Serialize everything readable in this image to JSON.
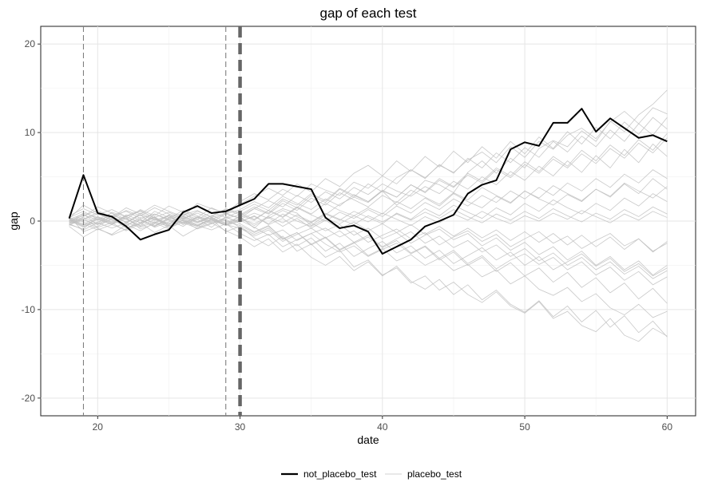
{
  "chart_data": {
    "type": "line",
    "title": "gap of each test",
    "xlabel": "date",
    "ylabel": "gap",
    "xlim": [
      16,
      62
    ],
    "ylim": [
      -22,
      22
    ],
    "x_ticks": [
      20,
      30,
      40,
      50,
      60
    ],
    "y_ticks": [
      -20,
      -10,
      0,
      10,
      20
    ],
    "grid": true,
    "legend_position": "bottom",
    "vlines": [
      {
        "x": 19,
        "style": "dashed-thin"
      },
      {
        "x": 29,
        "style": "dashed-thin"
      },
      {
        "x": 30,
        "style": "dashed-thick"
      }
    ],
    "colors": {
      "not_placebo_test": "#000000",
      "placebo_test": "#bebebe"
    },
    "legend": [
      {
        "key": "not_placebo_test",
        "label": "not_placebo_test"
      },
      {
        "key": "placebo_test",
        "label": "placebo_test"
      }
    ],
    "x": [
      18,
      19,
      20,
      21,
      22,
      23,
      24,
      25,
      26,
      27,
      28,
      29,
      30,
      31,
      32,
      33,
      34,
      35,
      36,
      37,
      38,
      39,
      40,
      41,
      42,
      43,
      44,
      45,
      46,
      47,
      48,
      49,
      50,
      51,
      52,
      53,
      54,
      55,
      56,
      57,
      58,
      59,
      60
    ],
    "series": [
      {
        "key": "not_placebo_test",
        "values": [
          0.3,
          5.2,
          0.9,
          0.5,
          -0.6,
          -2.1,
          -1.5,
          -1.0,
          1.0,
          1.7,
          0.9,
          1.1,
          1.8,
          2.5,
          4.2,
          4.2,
          3.9,
          3.6,
          0.4,
          -0.8,
          -0.5,
          -1.2,
          -3.7,
          -2.9,
          -2.1,
          -0.6,
          0.0,
          0.7,
          3.1,
          4.1,
          4.6,
          8.1,
          8.9,
          8.5,
          11.1,
          11.1,
          12.7,
          10.1,
          11.6,
          10.5,
          9.4,
          9.7,
          9.0
        ]
      },
      {
        "key": "placebo_test",
        "values": [
          0.2,
          0.8,
          -0.4,
          0.6,
          0.2,
          -0.5,
          0.8,
          0.1,
          -0.6,
          0.4,
          0.3,
          -0.2,
          0.5,
          -0.8,
          0.6,
          1.4,
          0.9,
          -0.5,
          0.7,
          1.9,
          2.7,
          2.1,
          3.4,
          1.8,
          3.0,
          4.6,
          4.1,
          3.2,
          5.5,
          6.8,
          5.4,
          7.1,
          6.0,
          8.2,
          9.1,
          8.4,
          10.2,
          9.0,
          11.3,
          10.1,
          12.0,
          13.2,
          14.8
        ]
      },
      {
        "key": "placebo_test",
        "values": [
          -0.4,
          -0.9,
          0.5,
          -0.2,
          -1.1,
          -0.3,
          0.4,
          -0.8,
          -0.1,
          -0.6,
          0.2,
          -1.2,
          -0.6,
          -1.9,
          -2.8,
          -1.7,
          -3.4,
          -2.6,
          -4.1,
          -3.3,
          -5.2,
          -4.4,
          -6.1,
          -5.3,
          -7.0,
          -6.2,
          -7.8,
          -6.9,
          -8.3,
          -9.2,
          -8.0,
          -9.6,
          -10.4,
          -9.1,
          -11.0,
          -10.2,
          -11.8,
          -12.5,
          -11.0,
          -12.9,
          -13.6,
          -12.1,
          -13.0
        ]
      },
      {
        "key": "placebo_test",
        "values": [
          0.1,
          0.6,
          1.2,
          0.4,
          1.5,
          0.8,
          1.8,
          1.1,
          0.5,
          2.0,
          1.4,
          0.9,
          2.2,
          3.1,
          2.4,
          3.6,
          2.8,
          4.2,
          3.5,
          2.9,
          4.4,
          3.7,
          5.1,
          4.2,
          5.8,
          4.9,
          6.3,
          5.5,
          6.9,
          7.8,
          6.6,
          8.4,
          7.2,
          9.0,
          8.1,
          9.7,
          10.5,
          9.3,
          11.2,
          12.4,
          11.0,
          12.8,
          12.1
        ]
      },
      {
        "key": "placebo_test",
        "values": [
          -0.2,
          0.3,
          -0.7,
          -0.2,
          0.4,
          -0.9,
          -0.3,
          0.6,
          -0.4,
          0.2,
          -0.7,
          0.5,
          -0.3,
          -1.2,
          -0.5,
          -2.0,
          -1.3,
          -2.6,
          -1.8,
          -3.2,
          -2.4,
          -3.9,
          -3.1,
          -4.5,
          -3.8,
          -5.0,
          -4.2,
          -5.6,
          -4.9,
          -6.3,
          -5.5,
          -7.1,
          -6.2,
          -7.7,
          -8.4,
          -7.5,
          -9.1,
          -8.2,
          -9.8,
          -10.6,
          -9.4,
          -10.9,
          -10.2
        ]
      },
      {
        "key": "placebo_test",
        "values": [
          0.4,
          1.1,
          0.2,
          0.9,
          -0.2,
          0.7,
          -0.5,
          0.3,
          1.2,
          0.6,
          -0.1,
          0.8,
          0.3,
          1.4,
          2.3,
          1.6,
          2.9,
          2.1,
          3.3,
          2.5,
          3.8,
          3.0,
          4.2,
          3.4,
          2.8,
          3.9,
          3.1,
          4.5,
          3.6,
          5.0,
          4.1,
          5.6,
          4.6,
          6.2,
          5.1,
          6.8,
          5.5,
          7.4,
          6.0,
          8.1,
          6.6,
          8.7,
          7.3
        ]
      },
      {
        "key": "placebo_test",
        "values": [
          -0.6,
          -1.8,
          -0.9,
          -1.5,
          -0.4,
          -1.1,
          -0.2,
          -0.9,
          0.2,
          -0.5,
          -1.0,
          -0.3,
          -1.4,
          -2.2,
          -1.5,
          -2.9,
          -2.1,
          -1.4,
          -2.6,
          -3.5,
          -2.8,
          -4.0,
          -3.2,
          -2.5,
          -3.7,
          -2.9,
          -4.4,
          -3.5,
          -5.0,
          -4.1,
          -5.7,
          -4.7,
          -6.2,
          -5.3,
          -6.9,
          -5.8,
          -7.5,
          -6.4,
          -8.1,
          -7.0,
          -8.8,
          -7.6,
          -9.3
        ]
      },
      {
        "key": "placebo_test",
        "values": [
          0.0,
          0.4,
          -0.3,
          1.0,
          0.5,
          -0.2,
          1.1,
          0.4,
          0.9,
          -0.1,
          0.6,
          1.3,
          0.7,
          0.1,
          1.2,
          0.5,
          1.6,
          0.8,
          2.0,
          1.2,
          0.6,
          1.5,
          0.8,
          2.2,
          1.4,
          2.6,
          1.7,
          3.1,
          2.2,
          1.5,
          2.8,
          2.0,
          3.4,
          2.5,
          1.8,
          3.0,
          2.2,
          3.6,
          2.7,
          4.2,
          3.1,
          4.8,
          3.6
        ]
      },
      {
        "key": "placebo_test",
        "values": [
          0.3,
          -0.5,
          0.2,
          -0.4,
          0.7,
          0.1,
          -0.6,
          0.2,
          -0.3,
          0.5,
          -0.2,
          0.4,
          -0.1,
          0.6,
          -0.4,
          0.3,
          -0.9,
          -0.2,
          -1.1,
          -0.4,
          -1.6,
          -0.8,
          -2.0,
          -1.3,
          -2.5,
          -1.6,
          -0.9,
          -2.1,
          -1.4,
          -2.8,
          -1.9,
          -3.3,
          -2.4,
          -3.8,
          -2.9,
          -4.4,
          -3.4,
          -5.0,
          -4.0,
          -5.5,
          -4.5,
          -6.1,
          -5.0
        ]
      },
      {
        "key": "placebo_test",
        "values": [
          -0.1,
          0.9,
          0.4,
          -0.3,
          0.6,
          1.2,
          0.3,
          -0.4,
          0.8,
          0.2,
          1.0,
          0.4,
          1.1,
          1.9,
          1.2,
          2.5,
          1.8,
          3.1,
          2.3,
          3.7,
          2.9,
          2.2,
          3.4,
          2.7,
          4.1,
          3.3,
          4.8,
          3.9,
          5.4,
          4.5,
          6.0,
          5.1,
          6.7,
          5.6,
          7.3,
          6.2,
          8.0,
          6.8,
          8.6,
          7.4,
          9.2,
          8.0,
          9.9
        ]
      },
      {
        "key": "placebo_test",
        "values": [
          0.5,
          -1.2,
          -0.6,
          0.3,
          -0.8,
          -0.2,
          0.5,
          -0.6,
          0.1,
          -0.9,
          -0.3,
          0.2,
          -0.7,
          -1.5,
          -0.8,
          -2.1,
          -1.3,
          -2.7,
          -1.9,
          -3.3,
          -2.5,
          -1.8,
          -3.0,
          -2.2,
          -3.6,
          -2.8,
          -4.2,
          -3.3,
          -4.8,
          -3.9,
          -5.4,
          -4.4,
          -3.7,
          -4.9,
          -4.1,
          -5.5,
          -4.6,
          -6.1,
          -5.2,
          -6.7,
          -5.7,
          -7.2,
          -6.3
        ]
      },
      {
        "key": "placebo_test",
        "values": [
          -0.3,
          0.2,
          0.8,
          0.1,
          -0.5,
          0.4,
          -0.2,
          0.7,
          0.0,
          -0.6,
          0.3,
          -0.4,
          0.2,
          0.9,
          0.3,
          1.2,
          0.5,
          -0.2,
          0.8,
          0.1,
          1.1,
          0.4,
          -0.3,
          0.9,
          0.2,
          1.4,
          0.6,
          1.8,
          1.0,
          0.3,
          1.5,
          0.7,
          2.0,
          1.1,
          2.4,
          1.5,
          0.8,
          2.0,
          1.2,
          2.6,
          1.7,
          3.1,
          2.2
        ]
      },
      {
        "key": "placebo_test",
        "values": [
          0.2,
          -0.3,
          -1.0,
          -0.4,
          0.3,
          -0.6,
          0.2,
          -0.3,
          0.6,
          -0.1,
          0.4,
          -0.5,
          0.1,
          -0.7,
          -1.6,
          -1.0,
          -2.2,
          -1.4,
          -0.8,
          -1.8,
          -1.1,
          -2.4,
          -1.6,
          -0.9,
          -2.0,
          -1.3,
          -2.7,
          -1.8,
          -1.1,
          -2.3,
          -1.5,
          -2.9,
          -2.0,
          -1.2,
          -2.5,
          -1.7,
          -3.1,
          -2.2,
          -1.4,
          -2.8,
          -2.0,
          -3.4,
          -2.5
        ]
      },
      {
        "key": "placebo_test",
        "values": [
          -0.5,
          0.5,
          1.6,
          0.9,
          0.2,
          1.3,
          0.6,
          1.7,
          1.0,
          0.4,
          1.5,
          0.8,
          1.9,
          2.8,
          3.7,
          2.9,
          4.2,
          3.3,
          4.8,
          3.9,
          5.4,
          6.3,
          5.1,
          6.8,
          5.6,
          7.3,
          6.1,
          7.9,
          6.6,
          8.4,
          7.1,
          9.0,
          7.6,
          9.5,
          8.2,
          10.1,
          8.7,
          10.6,
          9.3,
          11.2,
          9.8,
          11.7,
          10.4
        ]
      },
      {
        "key": "placebo_test",
        "values": [
          0.4,
          -0.1,
          -0.8,
          -1.6,
          -0.9,
          -0.2,
          -1.3,
          -0.5,
          -1.7,
          -0.8,
          -0.2,
          -1.1,
          -1.8,
          -2.9,
          -2.0,
          -3.5,
          -2.6,
          -4.1,
          -5.0,
          -4.0,
          -5.6,
          -4.6,
          -6.2,
          -5.1,
          -6.8,
          -7.7,
          -6.6,
          -8.3,
          -7.2,
          -8.9,
          -7.8,
          -9.4,
          -10.3,
          -9.0,
          -10.8,
          -9.6,
          -11.4,
          -10.1,
          -12.0,
          -10.7,
          -12.6,
          -11.3,
          -13.1
        ]
      },
      {
        "key": "placebo_test",
        "values": [
          -0.2,
          0.7,
          0.1,
          0.6,
          1.1,
          0.3,
          0.8,
          0.2,
          0.7,
          1.2,
          0.4,
          0.9,
          0.3,
          -0.3,
          0.5,
          -0.2,
          0.7,
          -0.1,
          0.9,
          0.2,
          -0.4,
          0.6,
          -0.1,
          0.8,
          0.1,
          1.0,
          0.3,
          1.3,
          0.5,
          -0.2,
          0.8,
          0.1,
          1.1,
          0.3,
          1.4,
          0.6,
          -0.1,
          0.9,
          0.2,
          1.3,
          0.5,
          1.6,
          0.8
        ]
      },
      {
        "key": "placebo_test",
        "values": [
          0.1,
          -0.7,
          0.3,
          -0.4,
          -1.0,
          0.2,
          -0.6,
          0.4,
          -0.2,
          -0.8,
          0.1,
          -0.5,
          0.6,
          1.4,
          0.8,
          2.0,
          1.2,
          2.6,
          1.8,
          3.2,
          2.4,
          1.6,
          2.9,
          2.1,
          3.5,
          2.7,
          1.9,
          3.2,
          2.4,
          3.8,
          2.9,
          2.1,
          3.4,
          2.6,
          4.0,
          3.1,
          2.3,
          3.6,
          2.8,
          4.3,
          3.4,
          2.6,
          3.9
        ]
      },
      {
        "key": "placebo_test",
        "values": [
          -0.4,
          0.1,
          -0.4,
          0.2,
          -0.3,
          0.9,
          0.2,
          -0.5,
          0.4,
          -0.2,
          0.6,
          0.0,
          -0.5,
          -1.3,
          -0.6,
          -1.9,
          -2.8,
          -1.9,
          -3.4,
          -2.5,
          -4.0,
          -3.1,
          -2.3,
          -3.6,
          -2.8,
          -4.2,
          -3.3,
          -4.8,
          -3.9,
          -3.0,
          -4.4,
          -3.5,
          -5.0,
          -4.0,
          -5.5,
          -4.6,
          -3.7,
          -5.1,
          -4.2,
          -5.7,
          -4.8,
          -6.2,
          -5.3
        ]
      },
      {
        "key": "placebo_test",
        "values": [
          0.6,
          1.4,
          0.7,
          1.3,
          0.5,
          1.1,
          0.4,
          1.0,
          0.3,
          0.9,
          0.2,
          0.8,
          1.3,
          2.2,
          1.5,
          2.8,
          2.0,
          1.3,
          2.5,
          1.7,
          3.0,
          2.2,
          3.5,
          2.7,
          4.1,
          3.2,
          4.6,
          3.8,
          5.2,
          4.3,
          5.8,
          4.9,
          6.4,
          5.4,
          7.0,
          6.0,
          7.6,
          6.5,
          8.2,
          7.1,
          8.8,
          7.7,
          9.4
        ]
      },
      {
        "key": "placebo_test",
        "values": [
          -0.1,
          -0.4,
          0.5,
          -0.1,
          0.5,
          -0.2,
          0.4,
          -0.3,
          0.3,
          -0.4,
          0.2,
          -0.5,
          0.0,
          0.5,
          -0.3,
          0.8,
          0.0,
          -0.6,
          0.3,
          -0.3,
          0.6,
          -0.1,
          0.9,
          0.2,
          -0.5,
          0.5,
          -0.2,
          0.8,
          0.1,
          1.1,
          0.3,
          -0.3,
          0.6,
          0.0,
          0.9,
          0.2,
          1.2,
          0.5,
          -0.2,
          0.8,
          0.1,
          1.1,
          0.4
        ]
      },
      {
        "key": "placebo_test",
        "values": [
          0.3,
          1.8,
          0.9,
          0.3,
          1.2,
          0.6,
          1.5,
          0.8,
          0.2,
          1.1,
          0.5,
          1.4,
          0.9,
          0.2,
          1.2,
          0.4,
          1.5,
          0.7,
          0.0,
          1.0,
          0.3,
          1.3,
          0.5,
          1.7,
          0.9,
          2.1,
          1.3,
          2.5,
          1.7,
          2.9,
          2.1,
          3.4,
          2.5,
          3.8,
          2.9,
          4.3,
          3.4,
          4.8,
          3.8,
          5.3,
          4.3,
          5.8,
          4.8
        ]
      },
      {
        "key": "placebo_test",
        "values": [
          -0.3,
          -1.0,
          -0.2,
          -0.8,
          -0.2,
          -0.7,
          -0.1,
          -0.6,
          0.1,
          -0.5,
          0.2,
          -0.4,
          -0.8,
          -1.7,
          -1.0,
          -2.3,
          -1.5,
          -0.8,
          -1.9,
          -1.1,
          -2.4,
          -1.6,
          -2.9,
          -2.0,
          -1.2,
          -2.5,
          -1.7,
          -3.0,
          -2.2,
          -3.5,
          -2.7,
          -4.0,
          -3.1,
          -4.5,
          -3.6,
          -5.0,
          -4.1,
          -5.5,
          -4.6,
          -6.0,
          -5.1,
          -6.5,
          -5.6
        ]
      },
      {
        "key": "placebo_test",
        "values": [
          0.0,
          0.2,
          1.0,
          0.5,
          -0.1,
          0.7,
          0.1,
          0.6,
          -0.2,
          0.4,
          -0.3,
          0.3,
          0.7,
          1.6,
          0.9,
          2.3,
          1.5,
          2.9,
          2.1,
          3.6,
          2.7,
          4.2,
          3.3,
          4.9,
          5.8,
          4.8,
          6.4,
          5.4,
          7.1,
          6.0,
          7.7,
          6.6,
          8.3,
          7.2,
          9.0,
          7.8,
          9.6,
          8.4,
          10.3,
          9.0,
          11.0,
          9.7,
          11.7
        ]
      },
      {
        "key": "placebo_test",
        "values": [
          0.2,
          -0.6,
          -0.1,
          0.4,
          -0.5,
          0.2,
          -0.7,
          -0.1,
          0.5,
          -0.2,
          0.4,
          -0.3,
          0.3,
          -0.5,
          0.4,
          -0.6,
          0.3,
          -0.8,
          0.1,
          -0.9,
          -0.1,
          -1.1,
          -0.3,
          -1.3,
          -0.4,
          -1.5,
          -0.6,
          -1.7,
          -0.8,
          -1.9,
          -1.0,
          -2.2,
          -1.2,
          -2.4,
          -1.4,
          -2.7,
          -1.6,
          -2.9,
          -1.8,
          -3.2,
          -2.0,
          -3.5,
          -2.3
        ]
      }
    ]
  }
}
